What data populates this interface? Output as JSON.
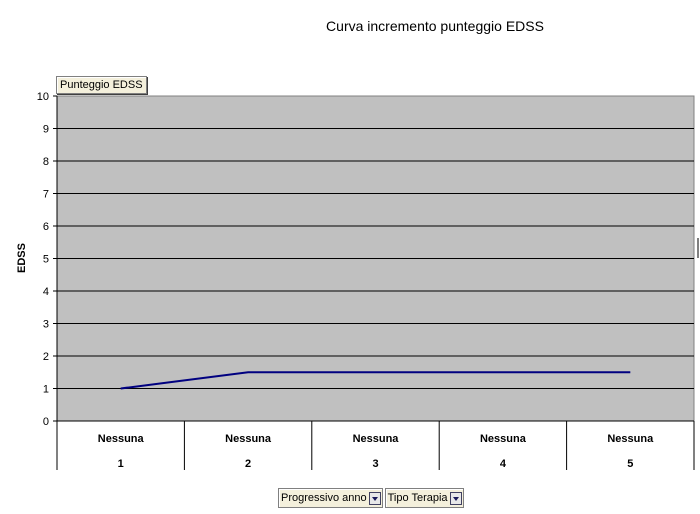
{
  "chart_data": {
    "type": "line",
    "title": "Curva incremento punteggio EDSS",
    "ylabel": "EDSS",
    "ylim": [
      0,
      10
    ],
    "yticks": [
      "0",
      "1",
      "2",
      "3",
      "4",
      "5",
      "6",
      "7",
      "8",
      "9",
      "10"
    ],
    "categories": [
      {
        "group": "Nessuna",
        "label": "1"
      },
      {
        "group": "Nessuna",
        "label": "2"
      },
      {
        "group": "Nessuna",
        "label": "3"
      },
      {
        "group": "Nessuna",
        "label": "4"
      },
      {
        "group": "Nessuna",
        "label": "5"
      }
    ],
    "series": [
      {
        "name": "Punteggio EDSS",
        "values": [
          1,
          1.5,
          1.5,
          1.5,
          1.5
        ],
        "color": "#000080"
      }
    ],
    "grid": true,
    "plot_background": "#c0c0c0"
  },
  "data_field_button": "Punteggio EDSS",
  "pivot_fields": [
    {
      "label": "Progressivo anno"
    },
    {
      "label": "Tipo Terapia"
    }
  ],
  "colors": {
    "plot_background": "#c0c0c0",
    "gridline": "#000000",
    "line": "#000080"
  }
}
